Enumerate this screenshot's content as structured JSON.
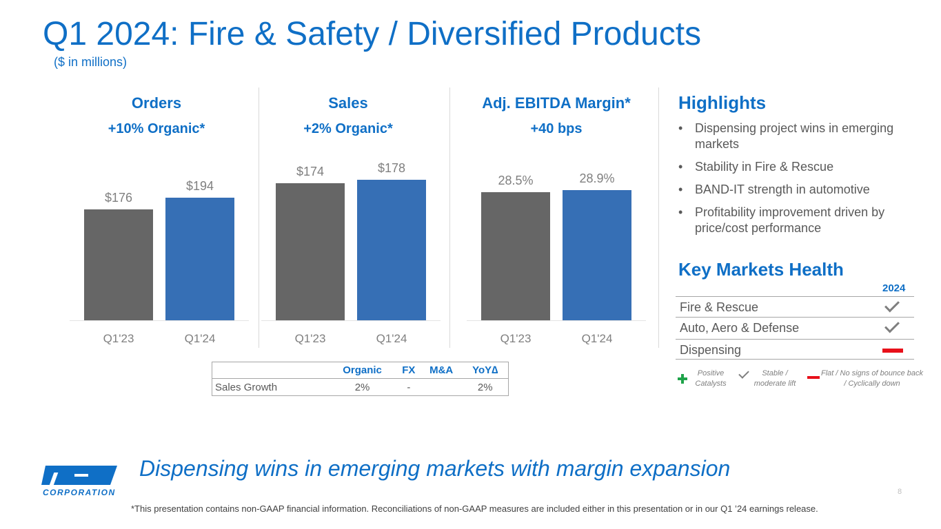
{
  "header": {
    "title": "Q1 2024: Fire & Safety / Diversified Products",
    "subtitle": "($ in millions)"
  },
  "colors": {
    "prior": "#666666",
    "current": "#366fb5",
    "accent": "#0f6fc6"
  },
  "chart_data": [
    {
      "type": "bar",
      "title": "Orders",
      "subtitle": "+10% Organic*",
      "categories": [
        "Q1'23",
        "Q1'24"
      ],
      "values": [
        176,
        194
      ],
      "labels": [
        "$176",
        "$194"
      ],
      "ylim": [
        0,
        251
      ]
    },
    {
      "type": "bar",
      "title": "Sales",
      "subtitle": "+2% Organic*",
      "categories": [
        "Q1'23",
        "Q1'24"
      ],
      "values": [
        174,
        178
      ],
      "labels": [
        "$174",
        "$178"
      ],
      "ylim": [
        0,
        201
      ]
    },
    {
      "type": "bar",
      "title": "Adj. EBITDA Margin*",
      "subtitle": "+40 bps",
      "categories": [
        "Q1'23",
        "Q1'24"
      ],
      "values": [
        28.5,
        28.9
      ],
      "labels": [
        "28.5%",
        "28.9%"
      ],
      "ylim": [
        0,
        35.2
      ]
    }
  ],
  "highlights": {
    "title": "Highlights",
    "items": [
      "Dispensing project wins in emerging markets",
      "Stability in Fire & Rescue",
      "BAND-IT strength in automotive",
      "Profitability improvement driven by price/cost performance"
    ]
  },
  "key_markets": {
    "title": "Key Markets Health",
    "year": "2024",
    "rows": [
      {
        "name": "Fire & Rescue",
        "status": "check"
      },
      {
        "name": "Auto, Aero & Defense",
        "status": "check"
      },
      {
        "name": "Dispensing",
        "status": "minus"
      }
    ],
    "legend": {
      "plus": "Positive Catalysts",
      "check": "Stable / moderate lift",
      "minus": "Flat / No signs of bounce back / Cyclically down"
    }
  },
  "growth_table": {
    "headers": [
      "",
      "Organic",
      "FX",
      "M&A",
      "YoY∆"
    ],
    "row": [
      "Sales Growth",
      "2%",
      "-",
      "",
      "2%"
    ]
  },
  "tagline": "Dispensing wins in emerging markets with margin expansion",
  "footnote": "*This presentation contains non-GAAP financial information. Reconciliations of non-GAAP measures are included either in this presentation or in our Q1 ’24 earnings release.",
  "page_number": "8",
  "logo": {
    "text": "IDEX",
    "sub": "CORPORATION"
  }
}
